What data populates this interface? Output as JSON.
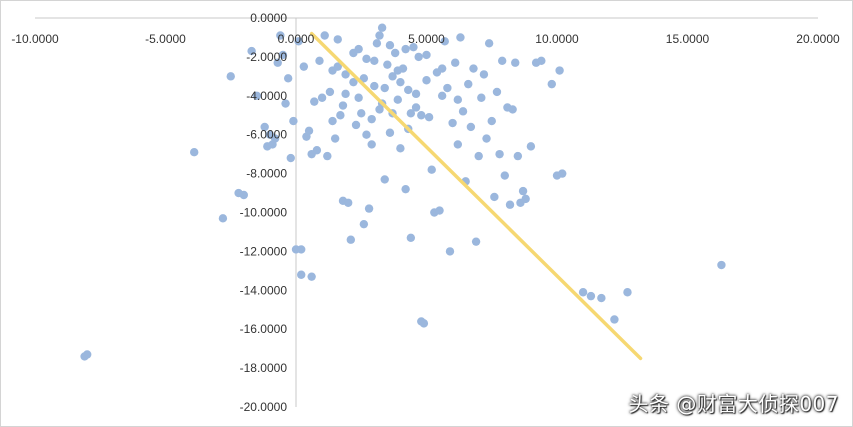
{
  "chart_data": {
    "type": "scatter",
    "title": "",
    "xlabel": "",
    "ylabel": "",
    "xlim": [
      -10,
      20
    ],
    "ylim": [
      -20,
      0
    ],
    "x_ticks": [
      "-10.0000",
      "-5.0000",
      "0.0000",
      "5.0000",
      "10.0000",
      "15.0000",
      "20.0000"
    ],
    "y_ticks": [
      "0.0000",
      "-2.0000",
      "-4.0000",
      "-6.0000",
      "-8.0000",
      "-10.0000",
      "-12.0000",
      "-14.0000",
      "-16.0000",
      "-18.0000",
      "-20.0000"
    ],
    "grid": "x-axis line only",
    "legend": "none",
    "series": [
      {
        "marker_color": "#9bb7dd",
        "points": [
          [
            -8.1,
            -17.4
          ],
          [
            -8.0,
            -17.3
          ],
          [
            -3.9,
            -6.9
          ],
          [
            -2.8,
            -10.3
          ],
          [
            -2.5,
            -3.0
          ],
          [
            -2.2,
            -9.0
          ],
          [
            -2.0,
            -9.1
          ],
          [
            -1.7,
            -1.7
          ],
          [
            -1.5,
            -4.0
          ],
          [
            -1.2,
            -5.6
          ],
          [
            -1.1,
            -6.6
          ],
          [
            -1.0,
            -6.0
          ],
          [
            -0.9,
            -6.5
          ],
          [
            -0.8,
            -6.2
          ],
          [
            -0.7,
            -2.3
          ],
          [
            -0.6,
            -0.9
          ],
          [
            -0.5,
            -1.9
          ],
          [
            -0.4,
            -4.4
          ],
          [
            -0.3,
            -3.1
          ],
          [
            -0.2,
            -7.2
          ],
          [
            -0.1,
            -5.3
          ],
          [
            0.0,
            -11.9
          ],
          [
            0.2,
            -13.2
          ],
          [
            0.1,
            -1.2
          ],
          [
            0.2,
            -11.9
          ],
          [
            0.3,
            -2.5
          ],
          [
            0.4,
            -6.1
          ],
          [
            0.5,
            -5.8
          ],
          [
            0.6,
            -13.3
          ],
          [
            0.6,
            -7.0
          ],
          [
            0.7,
            -4.3
          ],
          [
            0.8,
            -6.8
          ],
          [
            0.9,
            -2.2
          ],
          [
            1.0,
            -4.1
          ],
          [
            1.1,
            -0.9
          ],
          [
            1.2,
            -7.1
          ],
          [
            1.3,
            -3.8
          ],
          [
            1.4,
            -2.7
          ],
          [
            1.5,
            -6.2
          ],
          [
            1.6,
            -1.1
          ],
          [
            1.7,
            -5.0
          ],
          [
            1.8,
            -9.4
          ],
          [
            1.9,
            -2.9
          ],
          [
            2.0,
            -9.5
          ],
          [
            2.1,
            -11.4
          ],
          [
            2.2,
            -3.3
          ],
          [
            2.3,
            -5.5
          ],
          [
            2.4,
            -1.6
          ],
          [
            2.5,
            -4.9
          ],
          [
            2.6,
            -10.6
          ],
          [
            2.7,
            -2.1
          ],
          [
            2.8,
            -9.8
          ],
          [
            2.9,
            -6.5
          ],
          [
            3.0,
            -3.5
          ],
          [
            3.1,
            -1.3
          ],
          [
            3.2,
            -4.7
          ],
          [
            3.3,
            -0.5
          ],
          [
            3.4,
            -8.3
          ],
          [
            3.5,
            -2.4
          ],
          [
            3.6,
            -5.9
          ],
          [
            3.7,
            -3.0
          ],
          [
            3.8,
            -1.8
          ],
          [
            3.9,
            -4.2
          ],
          [
            4.0,
            -6.7
          ],
          [
            4.1,
            -2.6
          ],
          [
            4.2,
            -8.8
          ],
          [
            4.3,
            -3.7
          ],
          [
            4.4,
            -11.3
          ],
          [
            4.5,
            -1.5
          ],
          [
            4.6,
            -4.6
          ],
          [
            4.7,
            -2.0
          ],
          [
            4.8,
            -15.6
          ],
          [
            4.9,
            -15.7
          ],
          [
            5.0,
            -3.2
          ],
          [
            5.1,
            -5.1
          ],
          [
            5.2,
            -7.8
          ],
          [
            5.3,
            -10.0
          ],
          [
            5.4,
            -2.8
          ],
          [
            5.5,
            -9.9
          ],
          [
            5.6,
            -4.0
          ],
          [
            5.7,
            -1.2
          ],
          [
            5.8,
            -3.6
          ],
          [
            5.9,
            -12.0
          ],
          [
            6.0,
            -5.4
          ],
          [
            6.1,
            -2.3
          ],
          [
            6.2,
            -6.5
          ],
          [
            6.3,
            -1.0
          ],
          [
            6.4,
            -4.8
          ],
          [
            6.5,
            -8.4
          ],
          [
            6.6,
            -3.4
          ],
          [
            6.7,
            -5.6
          ],
          [
            6.8,
            -2.6
          ],
          [
            6.9,
            -11.5
          ],
          [
            7.0,
            -7.1
          ],
          [
            7.1,
            -4.1
          ],
          [
            7.2,
            -2.9
          ],
          [
            7.3,
            -6.2
          ],
          [
            7.4,
            -1.3
          ],
          [
            7.5,
            -5.3
          ],
          [
            7.6,
            -9.2
          ],
          [
            7.7,
            -3.8
          ],
          [
            7.8,
            -7.0
          ],
          [
            7.9,
            -2.2
          ],
          [
            8.0,
            -8.1
          ],
          [
            8.1,
            -4.6
          ],
          [
            8.2,
            -9.6
          ],
          [
            8.3,
            -4.7
          ],
          [
            8.4,
            -2.3
          ],
          [
            8.5,
            -7.1
          ],
          [
            8.6,
            -9.5
          ],
          [
            8.7,
            -8.9
          ],
          [
            8.8,
            -9.3
          ],
          [
            9.0,
            -6.6
          ],
          [
            9.2,
            -2.3
          ],
          [
            9.4,
            -2.2
          ],
          [
            9.8,
            -3.4
          ],
          [
            10.0,
            -8.1
          ],
          [
            10.1,
            -2.7
          ],
          [
            10.2,
            -8.0
          ],
          [
            11.0,
            -14.1
          ],
          [
            11.3,
            -14.3
          ],
          [
            11.7,
            -14.4
          ],
          [
            12.2,
            -15.5
          ],
          [
            12.7,
            -14.1
          ],
          [
            16.3,
            -12.7
          ],
          [
            1.6,
            -2.5
          ],
          [
            1.9,
            -3.9
          ],
          [
            2.2,
            -1.8
          ],
          [
            2.6,
            -3.1
          ],
          [
            3.0,
            -2.2
          ],
          [
            3.3,
            -4.4
          ],
          [
            3.6,
            -1.4
          ],
          [
            4.0,
            -3.3
          ],
          [
            4.3,
            -5.7
          ],
          [
            4.6,
            -3.9
          ],
          [
            2.4,
            -4.1
          ],
          [
            2.9,
            -5.2
          ],
          [
            3.4,
            -3.6
          ],
          [
            3.9,
            -2.7
          ],
          [
            4.4,
            -4.9
          ],
          [
            5.0,
            -1.9
          ],
          [
            5.6,
            -2.6
          ],
          [
            6.2,
            -4.2
          ],
          [
            1.4,
            -5.3
          ],
          [
            1.8,
            -4.5
          ],
          [
            2.7,
            -6.0
          ],
          [
            3.2,
            -0.9
          ],
          [
            3.7,
            -4.9
          ],
          [
            4.2,
            -1.6
          ],
          [
            4.8,
            -5.0
          ]
        ]
      }
    ],
    "trendline": {
      "type": "linear",
      "color": "#f6d872",
      "x": [
        0.6,
        13.2
      ],
      "y": [
        -0.8,
        -17.5
      ]
    }
  },
  "watermark": "头条 @财富大侦探007"
}
